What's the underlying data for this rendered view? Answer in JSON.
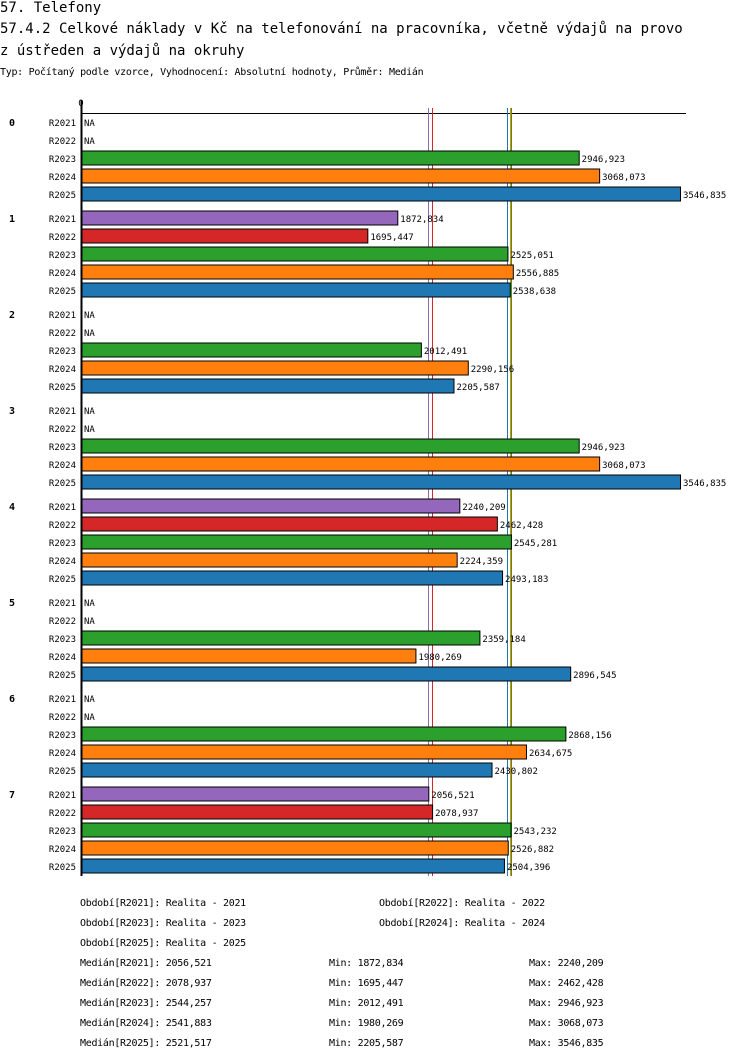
{
  "page": {
    "section_title": "57. Telefony",
    "chart_title_line1": "57.4.2 Celkové náklady v Kč na telefonování na pracovníka, včetně výdajů na provo",
    "chart_title_line2": "z ústředen a výdajů na okruhy",
    "subtitle": "Typ: Počítaný podle vzorce, Vyhodnocení: Absolutní hodnoty, Průměr: Medián"
  },
  "chart_data": {
    "type": "bar",
    "orientation": "horizontal",
    "title": "57.4.2 Celkové náklady v Kč na telefonování na pracovníka, včetně výdajů na provo z ústředen a výdajů na okruhy",
    "xlabel": "",
    "ylabel": "",
    "axis_zero_label": "0",
    "xlim": [
      0,
      3546.835
    ],
    "grid": false,
    "decimal_separator": ",",
    "na_label": "NA",
    "series_names": [
      "R2021",
      "R2022",
      "R2023",
      "R2024",
      "R2025"
    ],
    "series_colors": {
      "R2021": "#9467bd",
      "R2022": "#d62728",
      "R2023": "#2ca02c",
      "R2024": "#ff7f0e",
      "R2025": "#1f77b4"
    },
    "categories": [
      "0",
      "1",
      "2",
      "3",
      "4",
      "5",
      "6",
      "7"
    ],
    "series": [
      {
        "name": "R2021",
        "values": [
          null,
          1872.834,
          null,
          null,
          2240.209,
          null,
          null,
          2056.521
        ]
      },
      {
        "name": "R2022",
        "values": [
          null,
          1695.447,
          null,
          null,
          2462.428,
          null,
          null,
          2078.937
        ]
      },
      {
        "name": "R2023",
        "values": [
          2946.923,
          2525.051,
          2012.491,
          2946.923,
          2545.281,
          2359.184,
          2868.156,
          2543.232
        ]
      },
      {
        "name": "R2024",
        "values": [
          3068.073,
          2556.885,
          2290.156,
          3068.073,
          2224.359,
          1980.269,
          2634.675,
          2526.882
        ]
      },
      {
        "name": "R2025",
        "values": [
          3546.835,
          2538.638,
          2205.587,
          3546.835,
          2493.183,
          2896.545,
          2430.802,
          2504.396
        ]
      }
    ],
    "median_lines": [
      {
        "series": "R2021",
        "value": 2056.521
      },
      {
        "series": "R2022",
        "value": 2078.937
      },
      {
        "series": "R2023",
        "value": 2544.257
      },
      {
        "series": "R2024",
        "value": 2541.883
      },
      {
        "series": "R2025",
        "value": 2521.517
      }
    ],
    "legend": {
      "periods": [
        "Období[R2021]: Realita - 2021",
        "Období[R2022]: Realita - 2022",
        "Období[R2023]: Realita - 2023",
        "Období[R2024]: Realita - 2024",
        "Období[R2025]: Realita - 2025"
      ],
      "stats": [
        {
          "median": "Medián[R2021]: 2056,521",
          "min": "Min: 1872,834",
          "max": "Max: 2240,209"
        },
        {
          "median": "Medián[R2022]: 2078,937",
          "min": "Min: 1695,447",
          "max": "Max: 2462,428"
        },
        {
          "median": "Medián[R2023]: 2544,257",
          "min": "Min: 2012,491",
          "max": "Max: 2946,923"
        },
        {
          "median": "Medián[R2024]: 2541,883",
          "min": "Min: 1980,269",
          "max": "Max: 3068,073"
        },
        {
          "median": "Medián[R2025]: 2521,517",
          "min": "Min: 2205,587",
          "max": "Max: 3546,835"
        }
      ]
    }
  }
}
